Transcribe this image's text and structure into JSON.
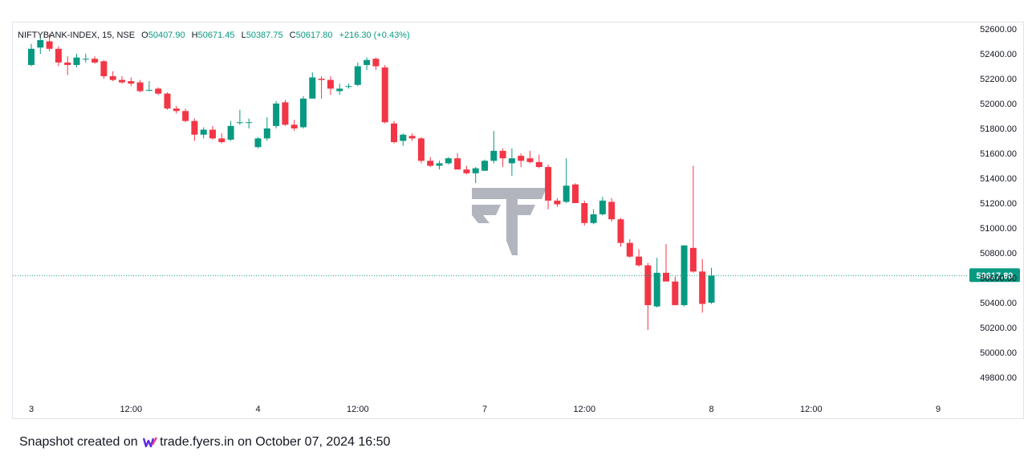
{
  "legend": {
    "symbol": "NIFTYBANK-INDEX, 15, NSE",
    "open_label": "O",
    "open": "50407.90",
    "high_label": "H",
    "high": "50671.45",
    "low_label": "L",
    "low": "50387.75",
    "close_label": "C",
    "close": "50617.80",
    "change": "+216.30 (+0.43%)"
  },
  "footer": {
    "prefix": "Snapshot created on",
    "brand": "trade.fyers.in",
    "suffix": "on October 07, 2024 16:50"
  },
  "colors": {
    "up": "#089981",
    "down": "#f23645",
    "watermark": "#b2b5be"
  },
  "chart_data": {
    "type": "candlestick",
    "y_ticks": [
      "52600.00",
      "52400.00",
      "52200.00",
      "52000.00",
      "51800.00",
      "51600.00",
      "51400.00",
      "51200.00",
      "51000.00",
      "50800.00",
      "50600.00",
      "50400.00",
      "50200.00",
      "50000.00",
      "49800.00"
    ],
    "ylim": [
      49650,
      52680
    ],
    "x_ticks": [
      {
        "label": "3",
        "index": 0
      },
      {
        "label": "12:00",
        "index": 11
      },
      {
        "label": "4",
        "index": 25
      },
      {
        "label": "12:00",
        "index": 36
      },
      {
        "label": "7",
        "index": 50
      },
      {
        "label": "12:00",
        "index": 61
      },
      {
        "label": "8",
        "index": 75
      },
      {
        "label": "12:00",
        "index": 86
      },
      {
        "label": "9",
        "index": 100
      }
    ],
    "last_price": "50617.80",
    "last_value": 50617.8,
    "candles": [
      [
        52310,
        52480,
        52300,
        52440
      ],
      [
        52450,
        52540,
        52400,
        52510
      ],
      [
        52500,
        52560,
        52420,
        52440
      ],
      [
        52440,
        52460,
        52300,
        52330
      ],
      [
        52330,
        52380,
        52230,
        52310
      ],
      [
        52310,
        52400,
        52290,
        52370
      ],
      [
        52360,
        52400,
        52330,
        52360
      ],
      [
        52360,
        52380,
        52320,
        52330
      ],
      [
        52340,
        52350,
        52200,
        52220
      ],
      [
        52220,
        52260,
        52180,
        52190
      ],
      [
        52190,
        52220,
        52160,
        52170
      ],
      [
        52180,
        52210,
        52140,
        52160
      ],
      [
        52170,
        52190,
        52090,
        52100
      ],
      [
        52110,
        52180,
        52100,
        52110
      ],
      [
        52120,
        52130,
        52070,
        52080
      ],
      [
        52080,
        52090,
        51950,
        51960
      ],
      [
        51960,
        51980,
        51920,
        51940
      ],
      [
        51940,
        51960,
        51850,
        51860
      ],
      [
        51860,
        51880,
        51700,
        51750
      ],
      [
        51750,
        51810,
        51720,
        51790
      ],
      [
        51790,
        51820,
        51710,
        51720
      ],
      [
        51720,
        51760,
        51680,
        51690
      ],
      [
        51710,
        51860,
        51700,
        51820
      ],
      [
        51850,
        51950,
        51830,
        51850
      ],
      [
        51850,
        51880,
        51800,
        51850
      ],
      [
        51650,
        51730,
        51640,
        51720
      ],
      [
        51720,
        51890,
        51700,
        51800
      ],
      [
        51820,
        52020,
        51800,
        52000
      ],
      [
        52010,
        52030,
        51820,
        51830
      ],
      [
        51830,
        51870,
        51780,
        51800
      ],
      [
        51810,
        52060,
        51800,
        52040
      ],
      [
        52040,
        52250,
        52040,
        52210
      ],
      [
        52200,
        52220,
        52040,
        52190
      ],
      [
        52190,
        52220,
        52070,
        52120
      ],
      [
        52100,
        52160,
        52070,
        52120
      ],
      [
        52140,
        52160,
        52120,
        52140
      ],
      [
        52150,
        52330,
        52140,
        52300
      ],
      [
        52310,
        52370,
        52270,
        52350
      ],
      [
        52360,
        52370,
        52270,
        52300
      ],
      [
        52290,
        52310,
        51840,
        51850
      ],
      [
        51840,
        51860,
        51680,
        51690
      ],
      [
        51700,
        51760,
        51660,
        51750
      ],
      [
        51740,
        51760,
        51700,
        51720
      ],
      [
        51720,
        51730,
        51520,
        51540
      ],
      [
        51540,
        51570,
        51490,
        51500
      ],
      [
        51500,
        51540,
        51470,
        51520
      ],
      [
        51520,
        51570,
        51510,
        51560
      ],
      [
        51560,
        51600,
        51470,
        51470
      ],
      [
        51470,
        51500,
        51430,
        51440
      ],
      [
        51440,
        51490,
        51360,
        51480
      ],
      [
        51460,
        51550,
        51460,
        51540
      ],
      [
        51540,
        51780,
        51520,
        51620
      ],
      [
        51620,
        51640,
        51490,
        51560
      ],
      [
        51520,
        51640,
        51420,
        51560
      ],
      [
        51580,
        51600,
        51490,
        51540
      ],
      [
        51560,
        51620,
        51520,
        51530
      ],
      [
        51530,
        51590,
        51480,
        51490
      ],
      [
        51490,
        51510,
        51150,
        51220
      ],
      [
        51220,
        51240,
        51170,
        51190
      ],
      [
        51210,
        51560,
        51200,
        51340
      ],
      [
        51350,
        51360,
        51200,
        51200
      ],
      [
        51200,
        51220,
        51020,
        51040
      ],
      [
        51040,
        51150,
        51030,
        51110
      ],
      [
        51110,
        51250,
        51100,
        51220
      ],
      [
        51210,
        51240,
        51050,
        51070
      ],
      [
        51070,
        51080,
        50850,
        50880
      ],
      [
        50880,
        50910,
        50760,
        50770
      ],
      [
        50770,
        50830,
        50690,
        50700
      ],
      [
        50700,
        50720,
        50180,
        50380
      ],
      [
        50370,
        50760,
        50360,
        50640
      ],
      [
        50640,
        50870,
        50570,
        50570
      ],
      [
        50570,
        50610,
        50380,
        50380
      ],
      [
        50380,
        50860,
        50370,
        50860
      ],
      [
        50840,
        51500,
        50640,
        50650
      ],
      [
        50650,
        50750,
        50320,
        50390
      ],
      [
        50400,
        50680,
        50390,
        50617.8
      ]
    ]
  }
}
